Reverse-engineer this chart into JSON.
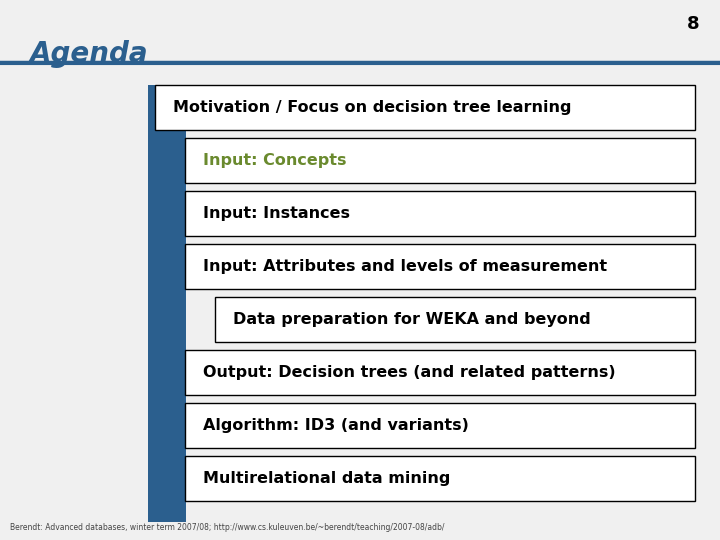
{
  "title": "Agenda",
  "page_number": "8",
  "background_color": "#f0f0f0",
  "slide_bg": "#e8e8e8",
  "blue_bar_color": "#2b5f8e",
  "header_line_color": "#2b5f8e",
  "items": [
    {
      "text": "Motivation / Focus on decision tree learning",
      "indent": 0,
      "color": "#000000",
      "bold": true,
      "active": false
    },
    {
      "text": "Input: Concepts",
      "indent": 1,
      "color": "#6a8a2e",
      "bold": true,
      "active": true
    },
    {
      "text": "Input: Instances",
      "indent": 1,
      "color": "#000000",
      "bold": true,
      "active": false
    },
    {
      "text": "Input: Attributes and levels of measurement",
      "indent": 1,
      "color": "#000000",
      "bold": true,
      "active": false
    },
    {
      "text": "Data preparation for WEKA and beyond",
      "indent": 2,
      "color": "#000000",
      "bold": true,
      "active": false
    },
    {
      "text": "Output: Decision trees (and related patterns)",
      "indent": 1,
      "color": "#000000",
      "bold": true,
      "active": false
    },
    {
      "text": "Algorithm: ID3 (and variants)",
      "indent": 1,
      "color": "#000000",
      "bold": true,
      "active": false
    },
    {
      "text": "Multirelational data mining",
      "indent": 1,
      "color": "#000000",
      "bold": true,
      "active": false
    }
  ],
  "footer_text": "Berendt: Advanced databases, winter term 2007/08; http://www.cs.kuleuven.be/~berendt/teaching/2007-08/adb/",
  "title_color": "#2b5f8e",
  "box_border_color": "#000000",
  "box_fill_color": "#ffffff"
}
